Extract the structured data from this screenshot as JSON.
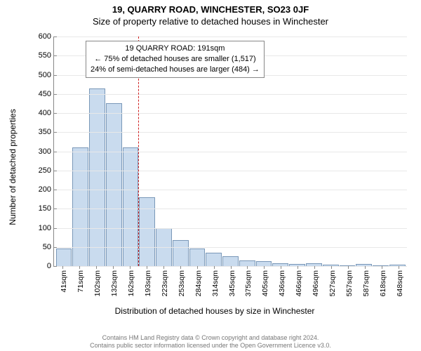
{
  "title": {
    "line1": "19, QUARRY ROAD, WINCHESTER, SO23 0JF",
    "line2": "Size of property relative to detached houses in Winchester",
    "fontsize": 13
  },
  "chart": {
    "type": "histogram",
    "ylabel": "Number of detached properties",
    "xlabel": "Distribution of detached houses by size in Winchester",
    "label_fontsize": 12,
    "ylim": [
      0,
      600
    ],
    "ytick_step": 50,
    "yticks": [
      0,
      50,
      100,
      150,
      200,
      250,
      300,
      350,
      400,
      450,
      500,
      550,
      600
    ],
    "xticks": [
      "41sqm",
      "71sqm",
      "102sqm",
      "132sqm",
      "162sqm",
      "193sqm",
      "223sqm",
      "253sqm",
      "284sqm",
      "314sqm",
      "345sqm",
      "375sqm",
      "405sqm",
      "436sqm",
      "466sqm",
      "496sqm",
      "527sqm",
      "557sqm",
      "587sqm",
      "618sqm",
      "648sqm"
    ],
    "values": [
      45,
      310,
      465,
      425,
      310,
      180,
      100,
      68,
      45,
      35,
      25,
      15,
      12,
      8,
      6,
      8,
      4,
      2,
      5,
      2,
      3
    ],
    "bar_fill": "#c9dbee",
    "bar_border": "#7a98b8",
    "grid_color": "#e8e8e8",
    "axis_color": "#888888",
    "background_color": "#ffffff",
    "reference": {
      "bin_index_after": 5,
      "color": "#d02020",
      "dash": true
    },
    "annotation": {
      "line1": "19 QUARRY ROAD: 191sqm",
      "line2": "← 75% of detached houses are smaller (1,517)",
      "line3": "24% of semi-detached houses are larger (484) →",
      "border_color": "#888888",
      "fontsize": 11
    }
  },
  "footer": {
    "line1": "Contains HM Land Registry data © Crown copyright and database right 2024.",
    "line2": "Contains public sector information licensed under the Open Government Licence v3.0.",
    "color": "#777777",
    "fontsize": 9
  }
}
